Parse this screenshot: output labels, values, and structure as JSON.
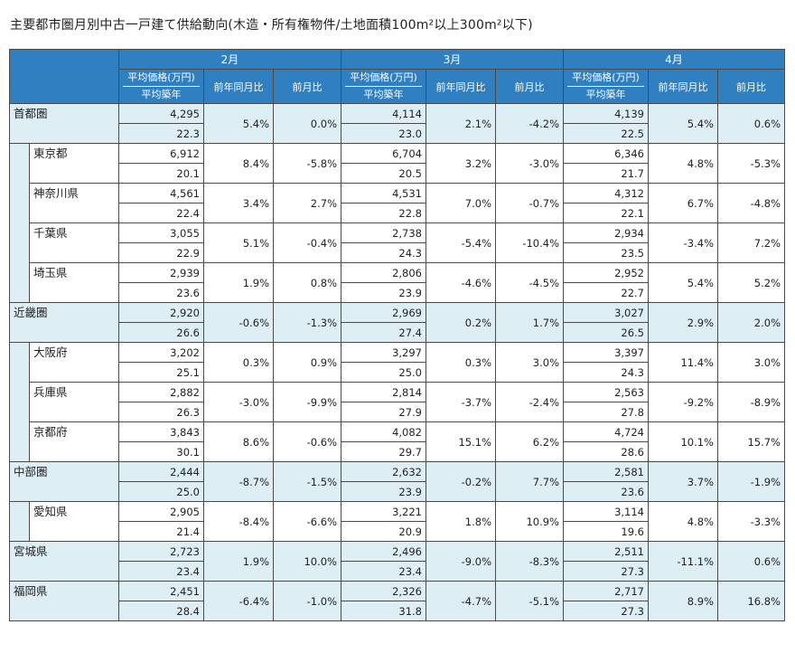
{
  "title": "主要都市圏月別中古一戸建て供給動向(木造・所有権物件/土地面積100m²以上300m²以下)",
  "months": [
    "2月",
    "3月",
    "4月"
  ],
  "subheaders": {
    "price": "平均価格(万円)",
    "age": "平均築年",
    "yoy": "前年同月比",
    "mom": "前月比"
  },
  "rows": [
    {
      "name": "首都圏",
      "level": 0,
      "d": [
        [
          "4,295",
          "22.3",
          "5.4%",
          "0.0%"
        ],
        [
          "4,114",
          "23.0",
          "2.1%",
          "-4.2%"
        ],
        [
          "4,139",
          "22.5",
          "5.4%",
          "0.6%"
        ]
      ]
    },
    {
      "name": "東京都",
      "level": 1,
      "d": [
        [
          "6,912",
          "20.1",
          "8.4%",
          "-5.8%"
        ],
        [
          "6,704",
          "20.5",
          "3.2%",
          "-3.0%"
        ],
        [
          "6,346",
          "21.7",
          "4.8%",
          "-5.3%"
        ]
      ]
    },
    {
      "name": "神奈川県",
      "level": 1,
      "d": [
        [
          "4,561",
          "22.4",
          "3.4%",
          "2.7%"
        ],
        [
          "4,531",
          "22.8",
          "7.0%",
          "-0.7%"
        ],
        [
          "4,312",
          "22.1",
          "6.7%",
          "-4.8%"
        ]
      ]
    },
    {
      "name": "千葉県",
      "level": 1,
      "d": [
        [
          "3,055",
          "22.9",
          "5.1%",
          "-0.4%"
        ],
        [
          "2,738",
          "24.3",
          "-5.4%",
          "-10.4%"
        ],
        [
          "2,934",
          "23.5",
          "-3.4%",
          "7.2%"
        ]
      ]
    },
    {
      "name": "埼玉県",
      "level": 1,
      "d": [
        [
          "2,939",
          "23.6",
          "1.9%",
          "0.8%"
        ],
        [
          "2,806",
          "23.9",
          "-4.6%",
          "-4.5%"
        ],
        [
          "2,952",
          "22.7",
          "5.4%",
          "5.2%"
        ]
      ]
    },
    {
      "name": "近畿圏",
      "level": 0,
      "d": [
        [
          "2,920",
          "26.6",
          "-0.6%",
          "-1.3%"
        ],
        [
          "2,969",
          "27.4",
          "0.2%",
          "1.7%"
        ],
        [
          "3,027",
          "26.5",
          "2.9%",
          "2.0%"
        ]
      ]
    },
    {
      "name": "大阪府",
      "level": 1,
      "d": [
        [
          "3,202",
          "25.1",
          "0.3%",
          "0.9%"
        ],
        [
          "3,297",
          "25.0",
          "0.3%",
          "3.0%"
        ],
        [
          "3,397",
          "24.3",
          "11.4%",
          "3.0%"
        ]
      ]
    },
    {
      "name": "兵庫県",
      "level": 1,
      "d": [
        [
          "2,882",
          "26.3",
          "-3.0%",
          "-9.9%"
        ],
        [
          "2,814",
          "27.9",
          "-3.7%",
          "-2.4%"
        ],
        [
          "2,563",
          "27.8",
          "-9.2%",
          "-8.9%"
        ]
      ]
    },
    {
      "name": "京都府",
      "level": 1,
      "d": [
        [
          "3,843",
          "30.1",
          "8.6%",
          "-0.6%"
        ],
        [
          "4,082",
          "29.7",
          "15.1%",
          "6.2%"
        ],
        [
          "4,724",
          "28.6",
          "10.1%",
          "15.7%"
        ]
      ]
    },
    {
      "name": "中部圏",
      "level": 0,
      "d": [
        [
          "2,444",
          "25.0",
          "-8.7%",
          "-1.5%"
        ],
        [
          "2,632",
          "23.9",
          "-0.2%",
          "7.7%"
        ],
        [
          "2,581",
          "23.6",
          "3.7%",
          "-1.9%"
        ]
      ]
    },
    {
      "name": "愛知県",
      "level": 1,
      "d": [
        [
          "2,905",
          "21.4",
          "-8.4%",
          "-6.6%"
        ],
        [
          "3,221",
          "20.9",
          "1.8%",
          "10.9%"
        ],
        [
          "3,114",
          "19.6",
          "4.8%",
          "-3.3%"
        ]
      ]
    },
    {
      "name": "宮城県",
      "level": 0,
      "d": [
        [
          "2,723",
          "23.4",
          "1.9%",
          "10.0%"
        ],
        [
          "2,496",
          "23.4",
          "-9.0%",
          "-8.3%"
        ],
        [
          "2,511",
          "27.3",
          "-11.1%",
          "0.6%"
        ]
      ]
    },
    {
      "name": "福岡県",
      "level": 0,
      "d": [
        [
          "2,451",
          "28.4",
          "-6.4%",
          "-1.0%"
        ],
        [
          "2,326",
          "31.8",
          "-4.7%",
          "-5.1%"
        ],
        [
          "2,717",
          "27.3",
          "8.9%",
          "16.8%"
        ]
      ]
    }
  ]
}
